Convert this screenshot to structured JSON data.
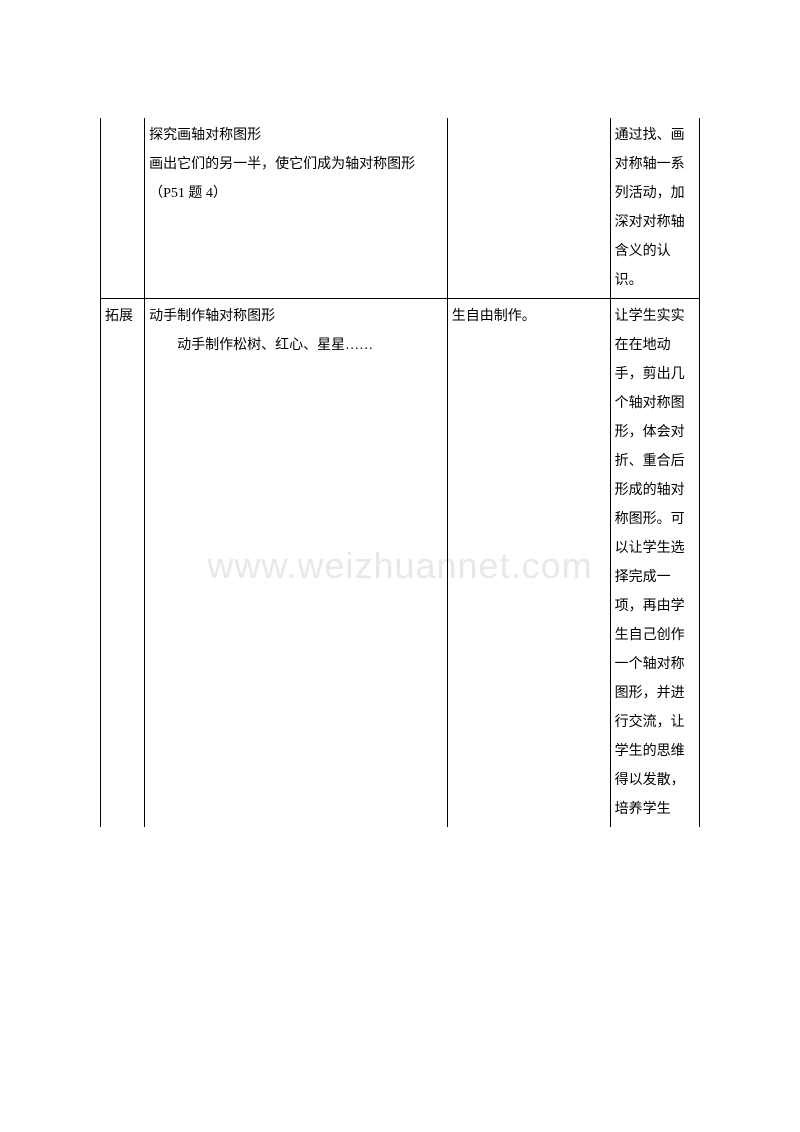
{
  "watermark": "www.weizhuannet.com",
  "table": {
    "row1": {
      "col1": "",
      "col2": "探究画轴对称图形\n画出它们的另一半，使它们成为轴对称图形（P51 题 4）",
      "col3": "",
      "col4": "通过找、画对称轴一系列活动，加深对对称轴含义的认识。"
    },
    "row2": {
      "col1": "拓展",
      "col2_line1": "动手制作轴对称图形",
      "col2_line2": "动手制作松树、红心、星星……",
      "col3": "生自由制作。",
      "col4": "让学生实实在在地动手，剪出几个轴对称图形，体会对折、重合后形成的轴对称图形。可以让学生选择完成一项，再由学生自己创作一个轴对称图形，并进行交流，让学生的思维得以发散，培养学生"
    }
  }
}
